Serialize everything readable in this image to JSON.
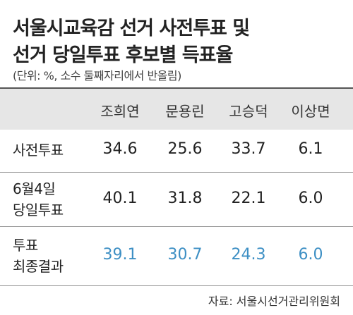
{
  "header": {
    "title_lines": [
      "서울시교육감 선거 사전투표 및",
      "선거 당일투표 후보별 득표율"
    ],
    "subtitle": "(단위: %, 소수 둘째자리에서 반올림)"
  },
  "table": {
    "columns": [
      "조희연",
      "문용린",
      "고승덕",
      "이상면"
    ],
    "rows": [
      {
        "label_lines": [
          "사전투표"
        ],
        "values": [
          "34.6",
          "25.6",
          "33.7",
          "6.1"
        ],
        "color": "#222222"
      },
      {
        "label_lines": [
          "6월4일",
          "당일투표"
        ],
        "values": [
          "40.1",
          "31.8",
          "22.1",
          "6.0"
        ],
        "color": "#222222"
      },
      {
        "label_lines": [
          "투표",
          "최종결과"
        ],
        "values": [
          "39.1",
          "30.7",
          "24.3",
          "6.0"
        ],
        "color": "#3d8fc4"
      }
    ]
  },
  "source": "자료: 서울시선거관리위원회"
}
